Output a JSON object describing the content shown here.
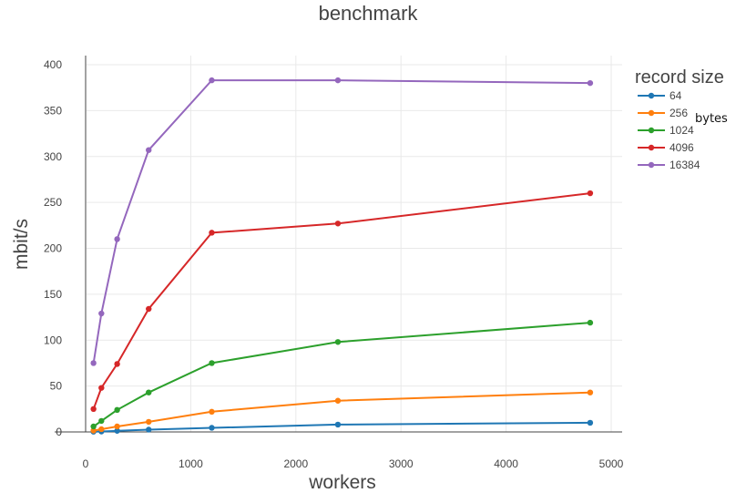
{
  "chart_data": {
    "type": "line",
    "title": "benchmark",
    "xlabel": "workers",
    "ylabel": "mbit/s",
    "xlim": [
      0,
      5000
    ],
    "ylim": [
      0,
      400
    ],
    "xticks": [
      0,
      1000,
      2000,
      3000,
      4000,
      5000
    ],
    "yticks": [
      0,
      50,
      100,
      150,
      200,
      250,
      300,
      350,
      400
    ],
    "grid": true,
    "legend": {
      "title": "record size",
      "placement": "right",
      "annotation": "bytes"
    },
    "x": [
      75,
      150,
      300,
      600,
      1200,
      2400,
      4800
    ],
    "series": [
      {
        "name": "64",
        "color": "#1f77b4",
        "values": [
          0.3,
          0.5,
          1.2,
          2.5,
          4.5,
          8,
          10
        ]
      },
      {
        "name": "256",
        "color": "#ff7f0e",
        "values": [
          1.5,
          3,
          6,
          11,
          22,
          34,
          43
        ]
      },
      {
        "name": "1024",
        "color": "#2ca02c",
        "values": [
          6,
          12,
          24,
          43,
          75,
          98,
          119
        ]
      },
      {
        "name": "4096",
        "color": "#d62728",
        "values": [
          25,
          48,
          74,
          134,
          217,
          227,
          260
        ]
      },
      {
        "name": "16384",
        "color": "#9467bd",
        "values": [
          75,
          129,
          210,
          307,
          383,
          383,
          380
        ]
      }
    ]
  }
}
